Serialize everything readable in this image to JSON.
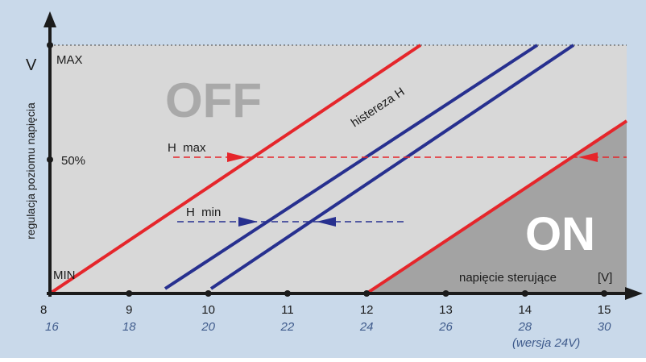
{
  "colors": {
    "outer_background": "#c9d9ea",
    "plot_light": "#d8d8d8",
    "on_region": "#a3a3a3",
    "red": "#e5262b",
    "blue": "#27308f",
    "axis": "#1b1b1b",
    "sub_label": "#3f5b8c",
    "off_text": "#a9a9a9",
    "on_text": "#ffffff"
  },
  "y_axis": {
    "unit": "V",
    "title": "regulacja poziomu napięcia",
    "max_label": "MAX",
    "mid_label": "50%",
    "min_label": "MIN"
  },
  "x_axis": {
    "title": "napięcie sterujące",
    "unit": "[V]",
    "ticks": [
      "8",
      "9",
      "10",
      "11",
      "12",
      "13",
      "14",
      "15"
    ],
    "ticks_24v": [
      "16",
      "18",
      "20",
      "22",
      "24",
      "26",
      "28",
      "30"
    ],
    "version_note": "(wersja 24V)"
  },
  "regions": {
    "off": "OFF",
    "on": "ON"
  },
  "annotations": {
    "hysteresis": "histereza H",
    "h_max": "H  max",
    "h_min": "H  min"
  }
}
